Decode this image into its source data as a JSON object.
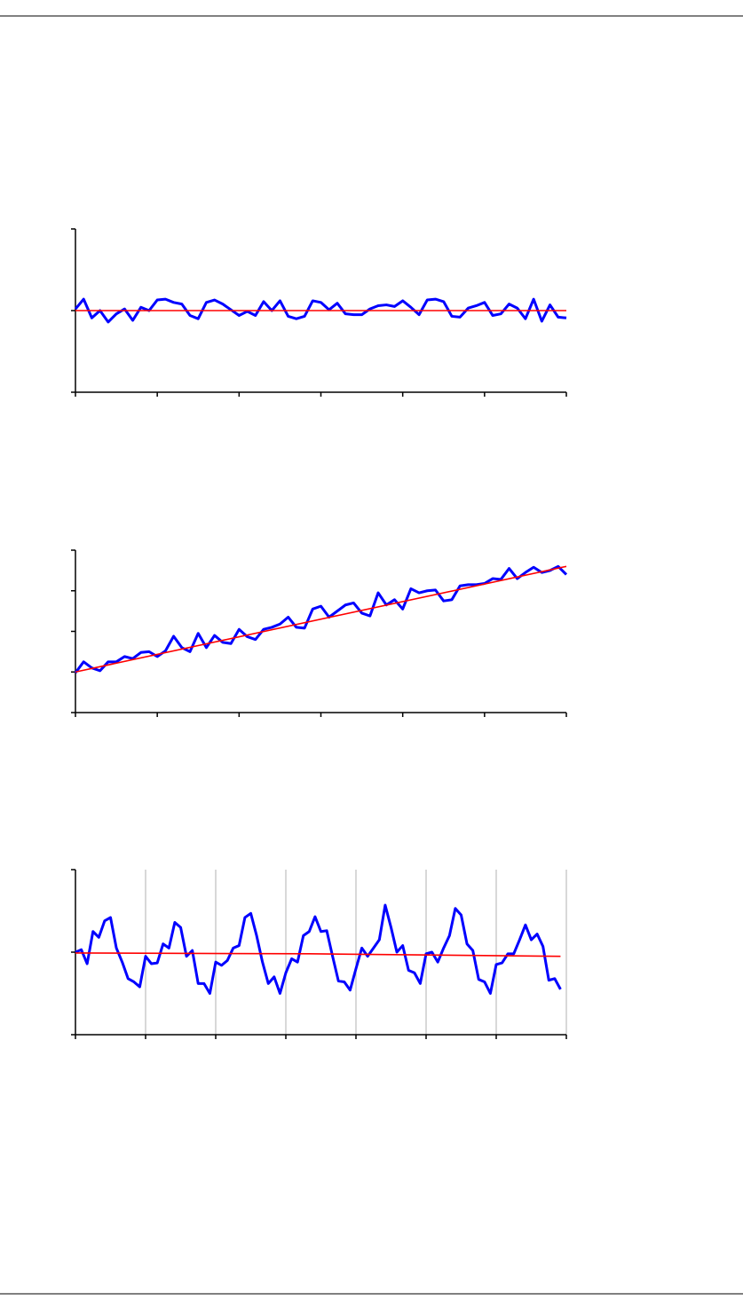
{
  "chart_data": [
    {
      "type": "line",
      "xlim": [
        0,
        60
      ],
      "xticks": [
        0,
        10,
        20,
        30,
        40,
        50,
        60
      ],
      "ylim": [
        -1,
        1
      ],
      "yticks": [
        -1,
        0,
        1
      ],
      "xgrid": false,
      "series": [
        {
          "color": "#0000ff",
          "x": [
            0,
            1,
            2,
            3,
            4,
            5,
            6,
            7,
            8,
            9,
            10,
            11,
            12,
            13,
            14,
            15,
            16,
            17,
            18,
            19,
            20,
            21,
            22,
            23,
            24,
            25,
            26,
            27,
            28,
            29,
            30,
            31,
            32,
            33,
            34,
            35,
            36,
            37,
            38,
            39,
            40,
            41,
            42,
            43,
            44,
            45,
            46,
            47,
            48,
            49,
            50,
            51,
            52,
            53,
            54,
            55,
            56,
            57,
            58,
            59,
            60
          ],
          "values": [
            0.02,
            0.14,
            -0.09,
            0.0,
            -0.14,
            -0.04,
            0.02,
            -0.12,
            0.04,
            0.0,
            0.13,
            0.14,
            0.1,
            0.08,
            -0.06,
            -0.1,
            0.1,
            0.13,
            0.08,
            0.01,
            -0.06,
            -0.01,
            -0.06,
            0.11,
            0.0,
            0.12,
            -0.07,
            -0.1,
            -0.07,
            0.12,
            0.1,
            0.01,
            0.09,
            -0.04,
            -0.05,
            -0.05,
            0.02,
            0.06,
            0.07,
            0.05,
            0.12,
            0.04,
            -0.05,
            0.13,
            0.14,
            0.11,
            -0.07,
            -0.08,
            0.03,
            0.06,
            0.1,
            -0.06,
            -0.04,
            0.08,
            0.03,
            -0.1,
            0.14,
            -0.13,
            0.07,
            -0.08,
            -0.09
          ]
        },
        {
          "color": "#ff0000",
          "x": [
            0,
            60
          ],
          "values": [
            0,
            0
          ]
        }
      ]
    },
    {
      "type": "line",
      "xlim": [
        0,
        60
      ],
      "xticks": [
        0,
        10,
        20,
        30,
        40,
        50,
        60
      ],
      "ylim": [
        0,
        4
      ],
      "yticks": [
        0,
        1,
        2,
        3,
        4
      ],
      "xgrid": false,
      "series": [
        {
          "color": "#0000ff",
          "x": [
            0,
            1,
            2,
            3,
            4,
            5,
            6,
            7,
            8,
            9,
            10,
            11,
            12,
            13,
            14,
            15,
            16,
            17,
            18,
            19,
            20,
            21,
            22,
            23,
            24,
            25,
            26,
            27,
            28,
            29,
            30,
            31,
            32,
            33,
            34,
            35,
            36,
            37,
            38,
            39,
            40,
            41,
            42,
            43,
            44,
            45,
            46,
            47,
            48,
            49,
            50,
            51,
            52,
            53,
            54,
            55,
            56,
            57,
            58,
            59,
            60
          ],
          "values": [
            0.98,
            1.25,
            1.1,
            1.03,
            1.25,
            1.25,
            1.38,
            1.33,
            1.48,
            1.5,
            1.38,
            1.52,
            1.88,
            1.6,
            1.5,
            1.95,
            1.6,
            1.9,
            1.73,
            1.7,
            2.05,
            1.87,
            1.8,
            2.05,
            2.1,
            2.18,
            2.35,
            2.1,
            2.08,
            2.55,
            2.62,
            2.35,
            2.5,
            2.65,
            2.7,
            2.45,
            2.38,
            2.95,
            2.65,
            2.78,
            2.55,
            3.05,
            2.95,
            3.0,
            3.02,
            2.75,
            2.78,
            3.12,
            3.15,
            3.15,
            3.18,
            3.3,
            3.28,
            3.55,
            3.3,
            3.45,
            3.58,
            3.45,
            3.5,
            3.6,
            3.4
          ]
        },
        {
          "color": "#ff0000",
          "x": [
            0,
            60
          ],
          "values": [
            1.0,
            3.6
          ]
        }
      ]
    },
    {
      "type": "line",
      "xlim": [
        0,
        84
      ],
      "xticks": [
        0,
        12,
        24,
        36,
        48,
        60,
        72,
        84
      ],
      "ylim": [
        -1,
        1
      ],
      "yticks": [
        -1,
        0,
        1
      ],
      "xgrid": true,
      "series": [
        {
          "color": "#0000ff",
          "x": [
            0,
            1,
            2,
            3,
            4,
            5,
            6,
            7,
            8,
            9,
            10,
            11,
            12,
            13,
            14,
            15,
            16,
            17,
            18,
            19,
            20,
            21,
            22,
            23,
            24,
            25,
            26,
            27,
            28,
            29,
            30,
            31,
            32,
            33,
            34,
            35,
            36,
            37,
            38,
            39,
            40,
            41,
            42,
            43,
            44,
            45,
            46,
            47,
            48,
            49,
            50,
            51,
            52,
            53,
            54,
            55,
            56,
            57,
            58,
            59,
            60,
            61,
            62,
            63,
            64,
            65,
            66,
            67,
            68,
            69,
            70,
            71,
            72,
            73,
            74,
            75,
            76,
            77,
            78,
            79,
            80,
            81,
            82,
            83
          ],
          "values": [
            0.0,
            0.03,
            -0.14,
            0.25,
            0.18,
            0.38,
            0.42,
            0.05,
            -0.12,
            -0.32,
            -0.36,
            -0.42,
            -0.05,
            -0.14,
            -0.13,
            0.1,
            0.05,
            0.36,
            0.3,
            -0.05,
            0.02,
            -0.38,
            -0.38,
            -0.5,
            -0.12,
            -0.16,
            -0.1,
            0.05,
            0.08,
            0.42,
            0.47,
            0.2,
            -0.12,
            -0.38,
            -0.3,
            -0.5,
            -0.25,
            -0.08,
            -0.12,
            0.2,
            0.25,
            0.43,
            0.25,
            0.26,
            -0.05,
            -0.35,
            -0.36,
            -0.46,
            -0.2,
            0.05,
            -0.05,
            0.05,
            0.15,
            0.57,
            0.3,
            0.0,
            0.08,
            -0.22,
            -0.25,
            -0.38,
            -0.02,
            0.0,
            -0.12,
            0.05,
            0.2,
            0.53,
            0.45,
            0.1,
            0.02,
            -0.33,
            -0.36,
            -0.5,
            -0.15,
            -0.13,
            -0.02,
            -0.02,
            0.15,
            0.33,
            0.15,
            0.22,
            0.07,
            -0.34,
            -0.32,
            -0.45
          ]
        },
        {
          "color": "#ff0000",
          "x": [
            0,
            40,
            83
          ],
          "values": [
            -0.01,
            -0.02,
            -0.05
          ]
        }
      ]
    }
  ]
}
